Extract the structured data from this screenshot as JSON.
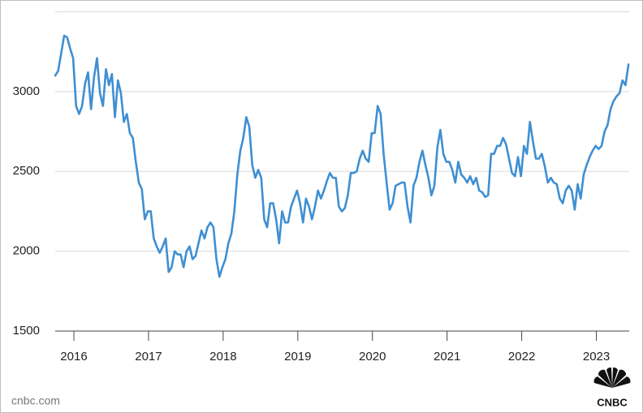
{
  "chart_data": {
    "type": "line",
    "x": [
      2015.75,
      2015.79,
      2015.83,
      2015.87,
      2015.91,
      2015.95,
      2015.99,
      2016.03,
      2016.07,
      2016.11,
      2016.15,
      2016.19,
      2016.23,
      2016.27,
      2016.31,
      2016.35,
      2016.39,
      2016.43,
      2016.47,
      2016.51,
      2016.55,
      2016.59,
      2016.63,
      2016.67,
      2016.71,
      2016.75,
      2016.79,
      2016.83,
      2016.87,
      2016.91,
      2016.95,
      2016.99,
      2017.03,
      2017.07,
      2017.11,
      2017.15,
      2017.19,
      2017.23,
      2017.27,
      2017.31,
      2017.35,
      2017.39,
      2017.43,
      2017.47,
      2017.51,
      2017.55,
      2017.59,
      2017.63,
      2017.67,
      2017.71,
      2017.75,
      2017.79,
      2017.83,
      2017.87,
      2017.91,
      2017.95,
      2017.99,
      2018.03,
      2018.07,
      2018.11,
      2018.15,
      2018.19,
      2018.23,
      2018.27,
      2018.31,
      2018.35,
      2018.39,
      2018.43,
      2018.47,
      2018.51,
      2018.55,
      2018.59,
      2018.63,
      2018.67,
      2018.71,
      2018.75,
      2018.79,
      2018.83,
      2018.87,
      2018.91,
      2018.95,
      2018.99,
      2019.03,
      2019.07,
      2019.11,
      2019.15,
      2019.19,
      2019.23,
      2019.27,
      2019.31,
      2019.35,
      2019.39,
      2019.43,
      2019.47,
      2019.51,
      2019.55,
      2019.59,
      2019.63,
      2019.67,
      2019.71,
      2019.75,
      2019.79,
      2019.83,
      2019.87,
      2019.91,
      2019.95,
      2019.99,
      2020.03,
      2020.07,
      2020.11,
      2020.15,
      2020.19,
      2020.23,
      2020.27,
      2020.31,
      2020.35,
      2020.39,
      2020.43,
      2020.47,
      2020.51,
      2020.55,
      2020.59,
      2020.63,
      2020.67,
      2020.71,
      2020.75,
      2020.79,
      2020.83,
      2020.87,
      2020.91,
      2020.95,
      2020.99,
      2021.03,
      2021.07,
      2021.11,
      2021.15,
      2021.19,
      2021.23,
      2021.27,
      2021.31,
      2021.35,
      2021.39,
      2021.43,
      2021.47,
      2021.51,
      2021.55,
      2021.59,
      2021.63,
      2021.67,
      2021.71,
      2021.75,
      2021.79,
      2021.83,
      2021.87,
      2021.91,
      2021.95,
      2021.99,
      2022.03,
      2022.07,
      2022.11,
      2022.15,
      2022.19,
      2022.23,
      2022.27,
      2022.31,
      2022.35,
      2022.39,
      2022.43,
      2022.47,
      2022.51,
      2022.55,
      2022.59,
      2022.63,
      2022.67,
      2022.71,
      2022.75,
      2022.79,
      2022.83,
      2022.87,
      2022.91,
      2022.95,
      2022.99,
      2023.03,
      2023.07,
      2023.11,
      2023.15,
      2023.19,
      2023.23,
      2023.27,
      2023.31,
      2023.35,
      2023.39,
      2023.43
    ],
    "values": [
      3100,
      3130,
      3240,
      3350,
      3340,
      3270,
      3210,
      2910,
      2860,
      2910,
      3050,
      3120,
      2890,
      3090,
      3210,
      2990,
      2910,
      3140,
      3040,
      3110,
      2840,
      3070,
      2990,
      2810,
      2860,
      2740,
      2710,
      2560,
      2430,
      2390,
      2200,
      2250,
      2250,
      2080,
      2030,
      1990,
      2030,
      2080,
      1870,
      1900,
      2000,
      1980,
      1980,
      1900,
      2000,
      2030,
      1950,
      1970,
      2050,
      2130,
      2080,
      2150,
      2180,
      2150,
      1950,
      1840,
      1900,
      1950,
      2050,
      2110,
      2250,
      2480,
      2630,
      2710,
      2840,
      2780,
      2540,
      2460,
      2510,
      2460,
      2200,
      2150,
      2300,
      2300,
      2200,
      2050,
      2250,
      2180,
      2180,
      2280,
      2330,
      2380,
      2300,
      2180,
      2330,
      2280,
      2200,
      2280,
      2380,
      2330,
      2380,
      2440,
      2490,
      2460,
      2460,
      2280,
      2250,
      2270,
      2350,
      2490,
      2490,
      2500,
      2580,
      2630,
      2580,
      2560,
      2740,
      2740,
      2910,
      2860,
      2610,
      2430,
      2260,
      2300,
      2410,
      2420,
      2430,
      2430,
      2280,
      2180,
      2410,
      2460,
      2560,
      2630,
      2540,
      2460,
      2350,
      2410,
      2650,
      2760,
      2610,
      2560,
      2560,
      2510,
      2430,
      2560,
      2480,
      2460,
      2430,
      2470,
      2420,
      2460,
      2380,
      2370,
      2340,
      2350,
      2610,
      2610,
      2660,
      2660,
      2710,
      2670,
      2580,
      2490,
      2470,
      2590,
      2470,
      2660,
      2610,
      2810,
      2690,
      2580,
      2580,
      2610,
      2530,
      2430,
      2460,
      2430,
      2420,
      2330,
      2300,
      2380,
      2410,
      2380,
      2260,
      2420,
      2330,
      2480,
      2540,
      2590,
      2630,
      2660,
      2640,
      2660,
      2750,
      2790,
      2890,
      2940,
      2970,
      2990,
      3070,
      3040,
      3170
    ],
    "color": "#3f8fd2",
    "xlim": [
      2015.75,
      2023.44
    ],
    "xticks": [
      2016,
      2017,
      2018,
      2019,
      2020,
      2021,
      2022,
      2023
    ],
    "ylim": [
      1500,
      3500
    ],
    "yticks": [
      1500,
      2000,
      2500,
      3000
    ],
    "grid": true
  },
  "source": "cnbc.com",
  "logo": "CNBC"
}
